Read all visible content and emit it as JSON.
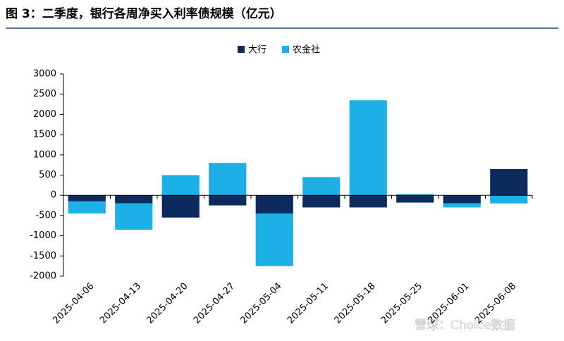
{
  "chart_data": {
    "type": "bar",
    "stacked": true,
    "title": "图 3：二季度，银行各周净买入利率债规模（亿元）",
    "watermark": "雪球：Choice数据",
    "categories": [
      "2025-04-06",
      "2025-04-13",
      "2025-04-20",
      "2025-04-27",
      "2025-05-04",
      "2025-05-11",
      "2025-05-18",
      "2025-05-25",
      "2025-06-01",
      "2025-06-08"
    ],
    "series": [
      {
        "name": "大行",
        "color": "#0c2a5c",
        "values": [
          -150,
          -200,
          -550,
          -250,
          -450,
          -300,
          -300,
          -180,
          -200,
          650
        ]
      },
      {
        "name": "农金社",
        "color": "#1cb0e6",
        "values": [
          -300,
          -650,
          500,
          800,
          -1300,
          450,
          2350,
          30,
          -100,
          -200
        ]
      }
    ],
    "ylim": [
      -2000,
      3000
    ],
    "yticks": [
      -2000,
      -1500,
      -1000,
      -500,
      0,
      500,
      1000,
      1500,
      2000,
      2500,
      3000
    ],
    "legend": "top",
    "grid": false
  }
}
